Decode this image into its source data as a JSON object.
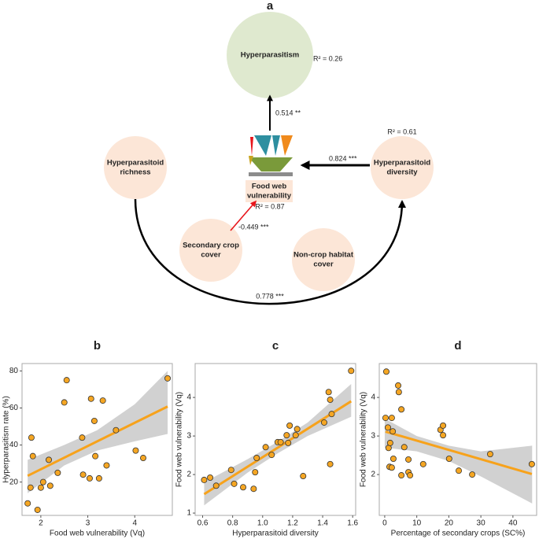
{
  "diagram": {
    "title": "a",
    "nodes": [
      {
        "label": [
          "Hyperparasitism"
        ]
      },
      {
        "label": [
          "Hyperparasitoid",
          "richness"
        ]
      },
      {
        "label": [
          "Hyperparasitoid",
          "diversity"
        ]
      },
      {
        "label": [
          "Secondary crop",
          "cover"
        ]
      },
      {
        "label": [
          "Non-crop habitat",
          "cover"
        ]
      },
      {
        "label": [
          "Food web",
          "vulnerability"
        ]
      }
    ],
    "r2": [
      "R² = 0.26",
      "R² = 0.61",
      "R² = 0.87"
    ],
    "paths": [
      "0.514 **",
      "0.824 ***",
      "-0.449 ***",
      "0.778 ***"
    ]
  },
  "chart_data": [
    {
      "type": "scatter",
      "title": "b",
      "xlabel": "Food web vulnerability (Vq)",
      "ylabel": "Hyperparasitism rate (%)",
      "x": [
        1.72,
        1.78,
        1.8,
        1.83,
        1.93,
        2.0,
        2.05,
        2.17,
        2.2,
        2.36,
        2.5,
        2.55,
        2.88,
        2.9,
        3.04,
        3.07,
        3.14,
        3.16,
        3.24,
        3.32,
        3.4,
        3.6,
        4.02,
        4.18,
        4.7
      ],
      "values": [
        8.5,
        17,
        44,
        34,
        5,
        17,
        20,
        32,
        18,
        25,
        63,
        75,
        44,
        24,
        22,
        65,
        53,
        34,
        22,
        64,
        29,
        48,
        37,
        33,
        76
      ],
      "color": "#f5a623",
      "line_color": "#f7a21b",
      "band_color": "#c9c9c9",
      "fit": {
        "slope": 12.55,
        "intercept": 1.8
      },
      "band": {
        "x": [
          1.72,
          2.5,
          3.2,
          4.0,
          4.7
        ],
        "lower": [
          14,
          29,
          37,
          42,
          46
        ],
        "upper": [
          32,
          40,
          48,
          62,
          80
        ]
      },
      "xlim": [
        1.6,
        4.8
      ],
      "ylim": [
        2,
        84
      ],
      "xticks": [
        2,
        3,
        4
      ],
      "yticks": [
        20,
        40,
        60,
        80
      ]
    },
    {
      "type": "scatter",
      "title": "c",
      "xlabel": "Hyperparasitoid diversity",
      "ylabel": "Food web vulnerability (Vq)",
      "x": [
        0.61,
        0.65,
        0.69,
        0.79,
        0.81,
        0.87,
        0.94,
        0.95,
        0.96,
        1.02,
        1.06,
        1.1,
        1.12,
        1.16,
        1.17,
        1.18,
        1.22,
        1.23,
        1.27,
        1.41,
        1.44,
        1.45,
        1.46,
        1.45,
        1.59
      ],
      "values": [
        1.86,
        1.92,
        1.71,
        2.12,
        1.76,
        1.67,
        1.63,
        2.06,
        2.43,
        2.71,
        2.51,
        2.84,
        2.84,
        3.02,
        2.82,
        3.27,
        3.02,
        3.18,
        1.96,
        3.35,
        4.14,
        3.94,
        3.57,
        2.27,
        4.69
      ],
      "color": "#f5a623",
      "line_color": "#f7a21b",
      "band_color": "#c9c9c9",
      "fit": {
        "slope": 2.46,
        "intercept": -0.01
      },
      "band": {
        "x": [
          0.61,
          0.9,
          1.1,
          1.3,
          1.59
        ],
        "lower": [
          1.2,
          2.05,
          2.55,
          3.0,
          3.5
        ],
        "upper": [
          1.8,
          2.4,
          2.85,
          3.35,
          4.35
        ]
      },
      "xlim": [
        0.55,
        1.62
      ],
      "ylim": [
        0.94,
        4.88
      ],
      "xticks": [
        0.6,
        0.8,
        {
          "value": 1,
          "label": "1.0"
        },
        1.2,
        1.4,
        1.6
      ],
      "yticks": [
        1,
        2,
        3,
        4
      ]
    },
    {
      "type": "scatter",
      "title": "d",
      "xlabel": "Percentage of secondary crops (SC%)",
      "ylabel": "Food web vulnerability (Vq)",
      "x": [
        0.5,
        0.25,
        1,
        1.2,
        1.5,
        1.7,
        2.2,
        2.5,
        2.7,
        2.2,
        4.2,
        4.4,
        5.2,
        5.2,
        6.1,
        7.4,
        7.4,
        7.9,
        12,
        17.4,
        18.2,
        18.2,
        20.1,
        23.1,
        27.3,
        32.9,
        45.9
      ],
      "values": [
        4.67,
        3.47,
        3.22,
        2.69,
        2.2,
        2.82,
        3.47,
        3.12,
        2.41,
        2.18,
        4.31,
        4.14,
        3.69,
        1.98,
        2.71,
        2.06,
        2.39,
        1.98,
        2.27,
        3.16,
        3.02,
        3.27,
        2.41,
        2.1,
        2.0,
        2.53,
        2.27
      ],
      "color": "#f5a623",
      "line_color": "#f7a21b",
      "band_color": "#c9c9c9",
      "fit": {
        "slope": -0.0241,
        "intercept": 3.12
      },
      "band": {
        "x": [
          0,
          10,
          20,
          30,
          46
        ],
        "lower": [
          2.7,
          2.6,
          2.35,
          1.95,
          1.25
        ],
        "upper": [
          3.45,
          3.0,
          2.75,
          2.6,
          2.75
        ]
      },
      "xlim": [
        -1.7,
        47.4
      ],
      "ylim": [
        0.94,
        4.88
      ],
      "xticks": [
        0,
        10,
        20,
        30,
        40
      ],
      "yticks": [
        2,
        3,
        4
      ]
    }
  ]
}
